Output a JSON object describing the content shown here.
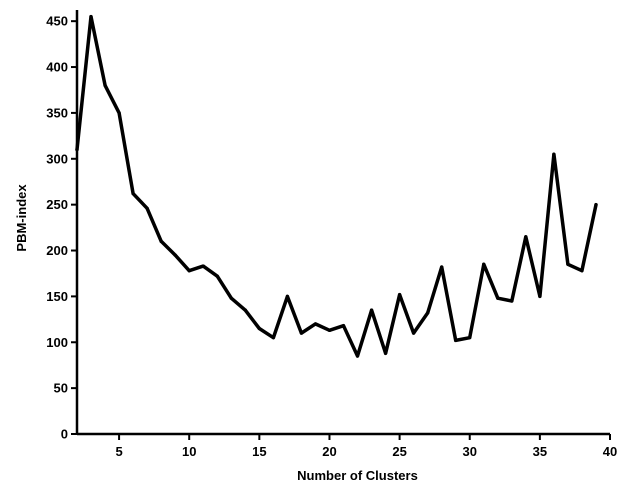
{
  "chart_data": {
    "type": "line",
    "title": "",
    "xlabel": "Number of Clusters",
    "ylabel": "PBM-index",
    "xlim": [
      2,
      40
    ],
    "ylim": [
      0,
      460
    ],
    "grid": false,
    "x_ticks": [
      5,
      10,
      15,
      20,
      25,
      30,
      35,
      40
    ],
    "y_ticks": [
      0,
      50,
      100,
      150,
      200,
      250,
      300,
      350,
      400,
      450
    ],
    "x_tick_labels": [
      "5",
      "10",
      "15",
      "20",
      "25",
      "30",
      "35",
      "40"
    ],
    "y_tick_labels": [
      "0",
      "50",
      "100",
      "150",
      "200",
      "250",
      "300",
      "350",
      "400",
      "450"
    ],
    "series": [
      {
        "color": "#000000",
        "x": [
          2,
          3,
          4,
          5,
          6,
          7,
          8,
          9,
          10,
          11,
          12,
          13,
          14,
          15,
          16,
          17,
          18,
          19,
          20,
          21,
          22,
          23,
          24,
          25,
          26,
          27,
          28,
          29,
          30,
          31,
          32,
          33,
          34,
          35,
          36,
          37,
          38,
          39
        ],
        "values": [
          310,
          455,
          380,
          350,
          262,
          246,
          210,
          195,
          178,
          183,
          172,
          148,
          135,
          115,
          105,
          150,
          110,
          120,
          113,
          118,
          85,
          135,
          88,
          152,
          110,
          132,
          182,
          102,
          105,
          185,
          148,
          145,
          215,
          150,
          305,
          185,
          178,
          250
        ]
      }
    ]
  }
}
